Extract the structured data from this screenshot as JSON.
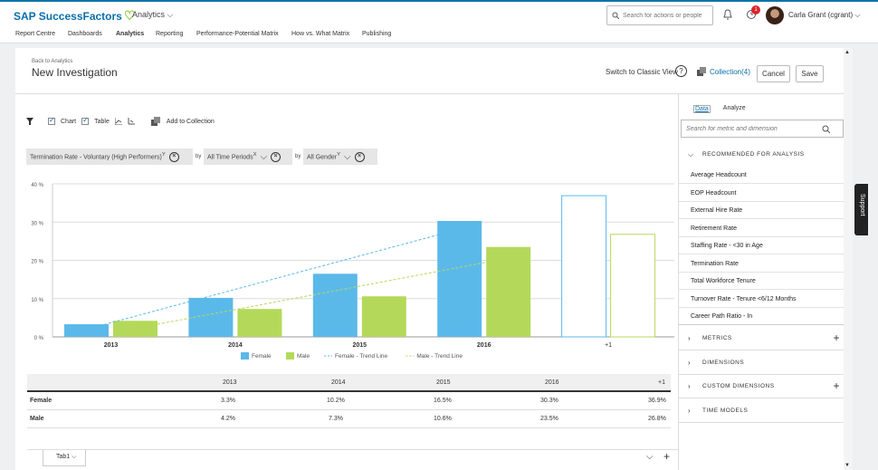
{
  "topbar": {
    "logo": "SAP SuccessFactors",
    "module": "Analytics",
    "search_placeholder": "Search for actions or people",
    "notification_count": "1",
    "user": "Carla Grant (cgrant)"
  },
  "nav": [
    "Report Centre",
    "Dashboards",
    "Analytics",
    "Reporting",
    "Performance-Potential Matrix",
    "How vs. What Matrix",
    "Publishing"
  ],
  "header": {
    "back_link": "Back to Analytics",
    "title": "New Investigation",
    "classic_view": "Switch to Classic View",
    "help": "?",
    "collection": "Collection(4)",
    "cancel": "Cancel",
    "save": "Save"
  },
  "toolbar": {
    "chart_label": "Chart",
    "table_label": "Table",
    "add_to_collection": "Add to Collection"
  },
  "filters": {
    "metric": "Termination Rate - Voluntary (High Performers)",
    "metric_sup": "Y",
    "by1": "by",
    "time": "All Time Periods",
    "time_sup": "X",
    "by2": "by",
    "gender": "All Gender",
    "gender_sup": "Y"
  },
  "chart_data": {
    "type": "bar",
    "categories": [
      "2013",
      "2014",
      "2015",
      "2016",
      "+1"
    ],
    "series": [
      {
        "name": "Female",
        "values": [
          3.3,
          10.2,
          16.5,
          30.3,
          36.9
        ],
        "color": "#5bb9e9"
      },
      {
        "name": "Male",
        "values": [
          4.2,
          7.3,
          10.6,
          23.5,
          26.8
        ],
        "color": "#b4d95a"
      }
    ],
    "trend_lines": [
      {
        "name": "Female - Trend Line",
        "color": "#5bb9e9"
      },
      {
        "name": "Male - Trend Line",
        "color": "#b4d95a"
      }
    ],
    "forecast_category": "+1",
    "yticks": [
      "0 %",
      "10 %",
      "20 %",
      "30 %",
      "40 %"
    ],
    "ylim": [
      0,
      40
    ],
    "grid": true,
    "legend_position": "bottom"
  },
  "table": {
    "columns": [
      "2013",
      "2014",
      "2015",
      "2016",
      "+1"
    ],
    "rows": [
      {
        "label": "Female",
        "values": [
          "3.3%",
          "10.2%",
          "16.5%",
          "30.3%",
          "36.9%"
        ]
      },
      {
        "label": "Male",
        "values": [
          "4.2%",
          "7.3%",
          "10.6%",
          "23.5%",
          "26.8%"
        ]
      }
    ]
  },
  "bottombar": {
    "tab": "Tab1"
  },
  "panel": {
    "tabs": [
      "Data",
      "Analyze"
    ],
    "search_placeholder": "Search for metric and dimension",
    "recommended": "RECOMMENDED FOR ANALYSIS",
    "items": [
      "Average Headcount",
      "EOP Headcount",
      "External Hire Rate",
      "Retirement Rate",
      "Staffing Rate - <30 in Age",
      "Termination Rate",
      "Total Workforce Tenure",
      "Turnover Rate - Tenure <6/12 Months",
      "Career Path Ratio - In"
    ],
    "sections": [
      "METRICS",
      "DIMENSIONS",
      "CUSTOM DIMENSIONS",
      "TIME MODELS"
    ]
  },
  "support": "Support"
}
